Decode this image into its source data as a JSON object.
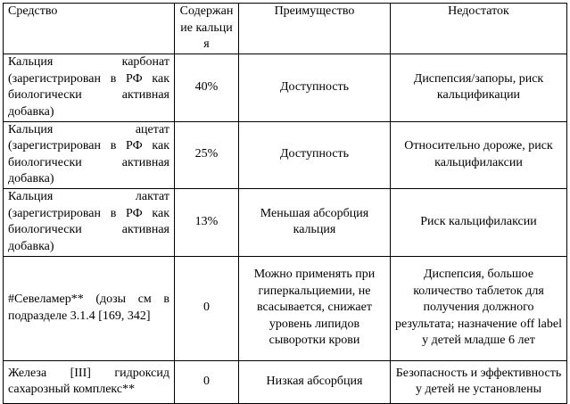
{
  "table": {
    "headers": [
      "Средство",
      "Содержание кальция",
      "Преимущество",
      "Недостаток"
    ],
    "rows": [
      [
        "Кальция карбонат (зарегистрирован в РФ как биологически активная добавка)",
        "40%",
        "Доступность",
        "Диспепсия/запоры, риск кальцификации"
      ],
      [
        "Кальция ацетат (зарегистрирован в РФ как биологически активная добавка)",
        "25%",
        "Доступность",
        "Относительно дороже, риск кальцифилаксии"
      ],
      [
        "Кальция лактат (зарегистрирован в РФ как биологически активная добавка)",
        "13%",
        "Меньшая абсорбция кальция",
        "Риск кальцифилаксии"
      ],
      [
        "#Севеламер** (дозы см в подразделе 3.1.4 [169, 342]",
        "0",
        "Можно применять при гиперкальциемии, не всасывается, снижает уровень липидов сыворотки крови",
        "Диспепсия, большое количество таблеток для получения должного результата; назначение off label у детей младше 6 лет"
      ],
      [
        "Железа [III] гидроксид сахарозный комплекс**",
        "0",
        "Низкая абсорбция",
        "Безопасность и эффективность у детей не установлены"
      ]
    ]
  }
}
